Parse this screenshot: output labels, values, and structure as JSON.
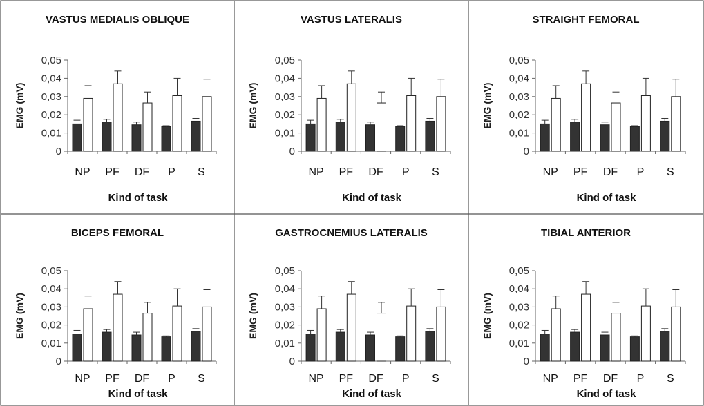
{
  "chart_data": [
    {
      "type": "bar",
      "title": "VASTUS MEDIALIS OBLIQUE",
      "xlabel": "Kind of task",
      "ylabel": "EMG (mV)",
      "yticks": [
        "0",
        "0,01",
        "0,02",
        "0,03",
        "0,04",
        "0,05"
      ],
      "ylim": [
        0,
        0.05
      ],
      "categories": [
        "NP",
        "PF",
        "DF",
        "P",
        "S"
      ],
      "series": [
        {
          "color": "#333333",
          "values": [
            0.015,
            0.016,
            0.0145,
            0.0135,
            0.0165
          ],
          "errors": [
            0.002,
            0.0015,
            0.0015,
            0.0005,
            0.0015
          ]
        },
        {
          "color": "#ffffff",
          "values": [
            0.029,
            0.037,
            0.0265,
            0.0305,
            0.03
          ],
          "errors": [
            0.007,
            0.007,
            0.006,
            0.0095,
            0.0095
          ]
        }
      ]
    },
    {
      "type": "bar",
      "title": "VASTUS LATERALIS",
      "xlabel": "Kind of task",
      "ylabel": "EMG (mV)",
      "yticks": [
        "0",
        "0,01",
        "0,02",
        "0,03",
        "0,04",
        "0,05"
      ],
      "ylim": [
        0,
        0.05
      ],
      "categories": [
        "NP",
        "PF",
        "DF",
        "P",
        "S"
      ],
      "series": [
        {
          "color": "#333333",
          "values": [
            0.015,
            0.016,
            0.0145,
            0.0135,
            0.0165
          ],
          "errors": [
            0.002,
            0.0015,
            0.0015,
            0.0005,
            0.0015
          ]
        },
        {
          "color": "#ffffff",
          "values": [
            0.029,
            0.037,
            0.0265,
            0.0305,
            0.03
          ],
          "errors": [
            0.007,
            0.007,
            0.006,
            0.0095,
            0.0095
          ]
        }
      ]
    },
    {
      "type": "bar",
      "title": "STRAIGHT FEMORAL",
      "xlabel": "Kind of task",
      "ylabel": "EMG (mV)",
      "yticks": [
        "0",
        "0,01",
        "0,02",
        "0,03",
        "0,04",
        "0,05"
      ],
      "ylim": [
        0,
        0.05
      ],
      "categories": [
        "NP",
        "PF",
        "DF",
        "P",
        "S"
      ],
      "series": [
        {
          "color": "#333333",
          "values": [
            0.015,
            0.016,
            0.0145,
            0.0135,
            0.0165
          ],
          "errors": [
            0.002,
            0.0015,
            0.0015,
            0.0005,
            0.0015
          ]
        },
        {
          "color": "#ffffff",
          "values": [
            0.029,
            0.037,
            0.0265,
            0.0305,
            0.03
          ],
          "errors": [
            0.007,
            0.007,
            0.006,
            0.0095,
            0.0095
          ]
        }
      ]
    },
    {
      "type": "bar",
      "title": "BICEPS FEMORAL",
      "xlabel": "Kind of task",
      "ylabel": "EMG (mV)",
      "yticks": [
        "0",
        "0,01",
        "0,02",
        "0,03",
        "0,04",
        "0,05"
      ],
      "ylim": [
        0,
        0.05
      ],
      "categories": [
        "NP",
        "PF",
        "DF",
        "P",
        "S"
      ],
      "series": [
        {
          "color": "#333333",
          "values": [
            0.015,
            0.016,
            0.0145,
            0.0135,
            0.0165
          ],
          "errors": [
            0.002,
            0.0015,
            0.0015,
            0.0005,
            0.0015
          ]
        },
        {
          "color": "#ffffff",
          "values": [
            0.029,
            0.037,
            0.0265,
            0.0305,
            0.03
          ],
          "errors": [
            0.007,
            0.007,
            0.006,
            0.0095,
            0.0095
          ]
        }
      ]
    },
    {
      "type": "bar",
      "title": "GASTROCNEMIUS LATERALIS",
      "xlabel": "Kind of task",
      "ylabel": "EMG (mV)",
      "yticks": [
        "0",
        "0,01",
        "0,02",
        "0,03",
        "0,04",
        "0,05"
      ],
      "ylim": [
        0,
        0.05
      ],
      "categories": [
        "NP",
        "PF",
        "DF",
        "P",
        "S"
      ],
      "series": [
        {
          "color": "#333333",
          "values": [
            0.015,
            0.016,
            0.0145,
            0.0135,
            0.0165
          ],
          "errors": [
            0.002,
            0.0015,
            0.0015,
            0.0005,
            0.0015
          ]
        },
        {
          "color": "#ffffff",
          "values": [
            0.029,
            0.037,
            0.0265,
            0.0305,
            0.03
          ],
          "errors": [
            0.007,
            0.007,
            0.006,
            0.0095,
            0.0095
          ]
        }
      ]
    },
    {
      "type": "bar",
      "title": "TIBIAL ANTERIOR",
      "xlabel": "Kind of task",
      "ylabel": "EMG (mV)",
      "yticks": [
        "0",
        "0,01",
        "0,02",
        "0,03",
        "0,04",
        "0,05"
      ],
      "ylim": [
        0,
        0.05
      ],
      "categories": [
        "NP",
        "PF",
        "DF",
        "P",
        "S"
      ],
      "series": [
        {
          "color": "#333333",
          "values": [
            0.015,
            0.016,
            0.0145,
            0.0135,
            0.0165
          ],
          "errors": [
            0.002,
            0.0015,
            0.0015,
            0.0005,
            0.0015
          ]
        },
        {
          "color": "#ffffff",
          "values": [
            0.029,
            0.037,
            0.0265,
            0.0305,
            0.03
          ],
          "errors": [
            0.007,
            0.007,
            0.006,
            0.0095,
            0.0095
          ]
        }
      ]
    }
  ]
}
